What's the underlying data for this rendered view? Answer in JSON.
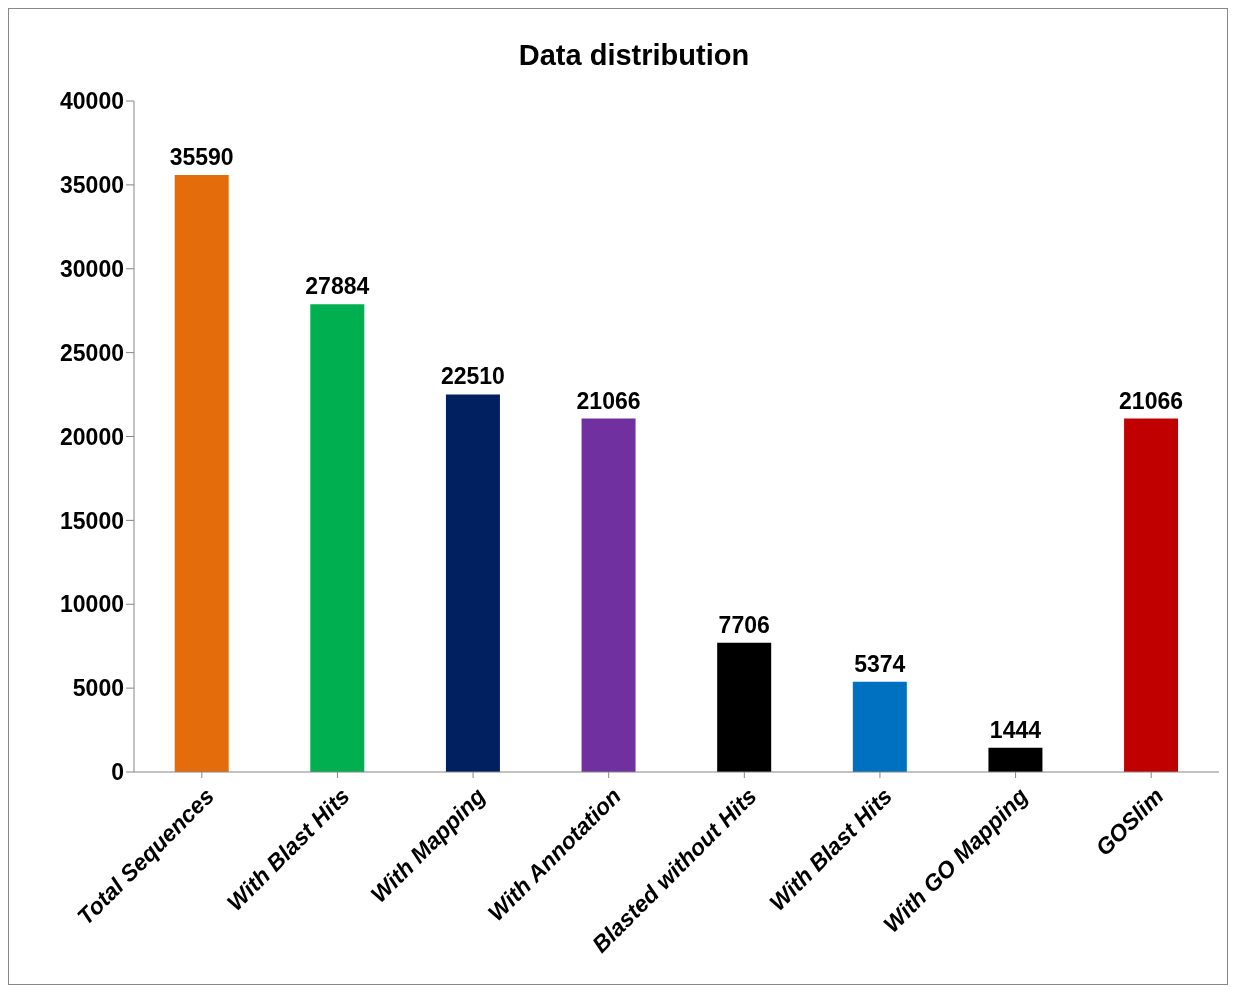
{
  "chart_data": {
    "type": "bar",
    "title": "Data distribution",
    "categories": [
      "Total Sequences",
      "With Blast Hits",
      "With Mapping",
      "With Annotation",
      "Blasted without Hits",
      "With Blast Hits",
      "With GO Mapping",
      "GOSlim"
    ],
    "values": [
      35590,
      27884,
      22510,
      21066,
      7706,
      5374,
      1444,
      21066
    ],
    "colors": [
      "#e46c0a",
      "#00b050",
      "#002060",
      "#7030a0",
      "#000000",
      "#0070c0",
      "#000000",
      "#c00000"
    ],
    "ylim": [
      0,
      40000
    ],
    "yticks": [
      0,
      5000,
      10000,
      15000,
      20000,
      25000,
      30000,
      35000,
      40000
    ],
    "grid": false,
    "legend": false,
    "data_labels": true
  }
}
